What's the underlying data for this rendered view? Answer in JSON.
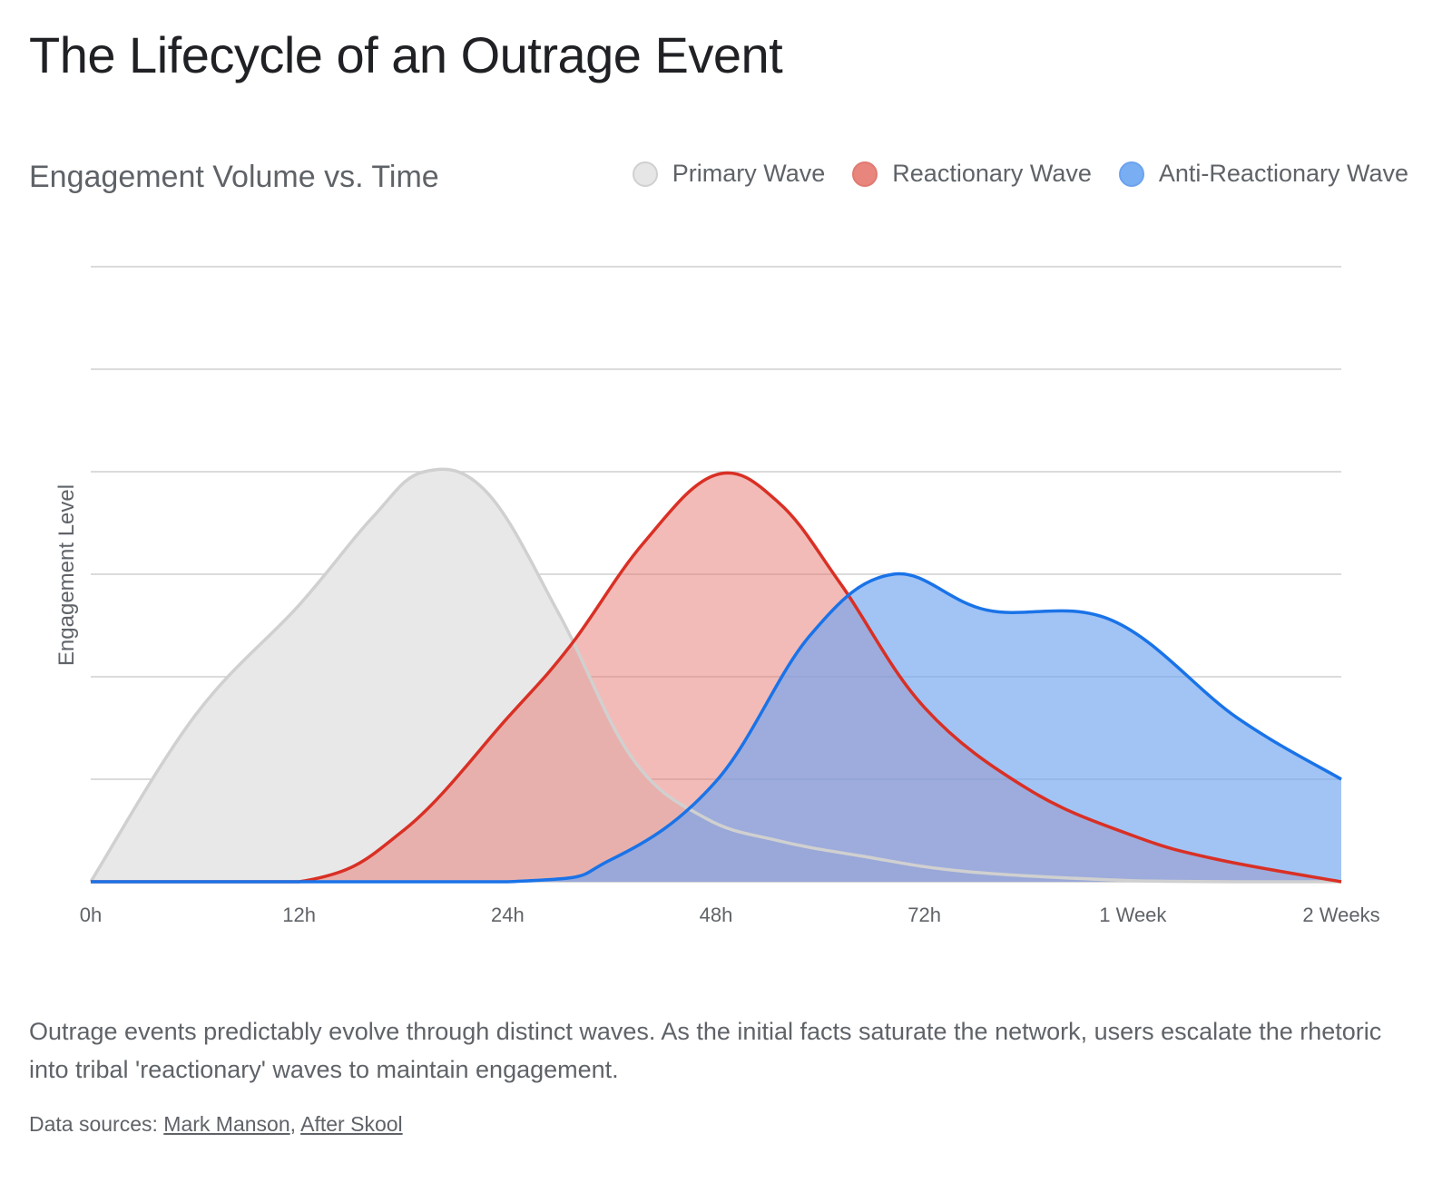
{
  "title": "The Lifecycle of an Outrage Event",
  "subtitle": "Engagement Volume vs. Time",
  "description": "Outrage events predictably evolve through distinct waves. As the initial facts saturate the network, users escalate the rhetoric into tribal 'reactionary' waves to maintain engagement.",
  "sources": {
    "prefix": "Data sources:",
    "separator": ",",
    "links": [
      "Mark Manson",
      "After Skool"
    ]
  },
  "chart_data": {
    "type": "area",
    "title": "The Lifecycle of an Outrage Event",
    "subtitle": "Engagement Volume vs. Time",
    "xlabel": "",
    "ylabel": "Engagement Level",
    "categories": [
      "0h",
      "12h",
      "24h",
      "48h",
      "72h",
      "1 Week",
      "2 Weeks"
    ],
    "ylim": [
      0,
      6
    ],
    "y_tick_labels_shown": false,
    "grid": true,
    "legend_position": "top-right",
    "series": [
      {
        "name": "Primary Wave",
        "color": "#d0d0d0",
        "fill": "#e8e8e8",
        "points": [
          [
            0,
            0
          ],
          [
            0.5,
            1.62
          ],
          [
            1,
            2.7
          ],
          [
            1.35,
            3.55
          ],
          [
            1.6,
            4.0
          ],
          [
            1.9,
            3.8
          ],
          [
            2.25,
            2.6
          ],
          [
            2.6,
            1.2
          ],
          [
            2.95,
            0.62
          ],
          [
            3.3,
            0.4
          ],
          [
            3.7,
            0.25
          ],
          [
            4.2,
            0.1
          ],
          [
            5,
            0.01
          ],
          [
            5.5,
            0
          ],
          [
            6,
            0
          ]
        ]
      },
      {
        "name": "Reactionary Wave",
        "color": "#d93025",
        "fill": "#e8787080",
        "points": [
          [
            0,
            0
          ],
          [
            1,
            0
          ],
          [
            1.5,
            0.5
          ],
          [
            2,
            1.6
          ],
          [
            2.3,
            2.3
          ],
          [
            2.65,
            3.3
          ],
          [
            3,
            3.97
          ],
          [
            3.3,
            3.7
          ],
          [
            3.6,
            2.9
          ],
          [
            4,
            1.7
          ],
          [
            4.5,
            0.9
          ],
          [
            5,
            0.45
          ],
          [
            5.4,
            0.22
          ],
          [
            6,
            0
          ]
        ]
      },
      {
        "name": "Anti-Reactionary Wave",
        "color": "#1a73e8",
        "fill": "#6fa5f0a6",
        "points": [
          [
            0,
            0
          ],
          [
            2,
            0
          ],
          [
            2.5,
            0.22
          ],
          [
            3,
            0.98
          ],
          [
            3.45,
            2.4
          ],
          [
            3.85,
            3.0
          ],
          [
            4.3,
            2.65
          ],
          [
            4.9,
            2.55
          ],
          [
            5.5,
            1.6
          ],
          [
            6,
            1.0
          ]
        ]
      }
    ]
  }
}
